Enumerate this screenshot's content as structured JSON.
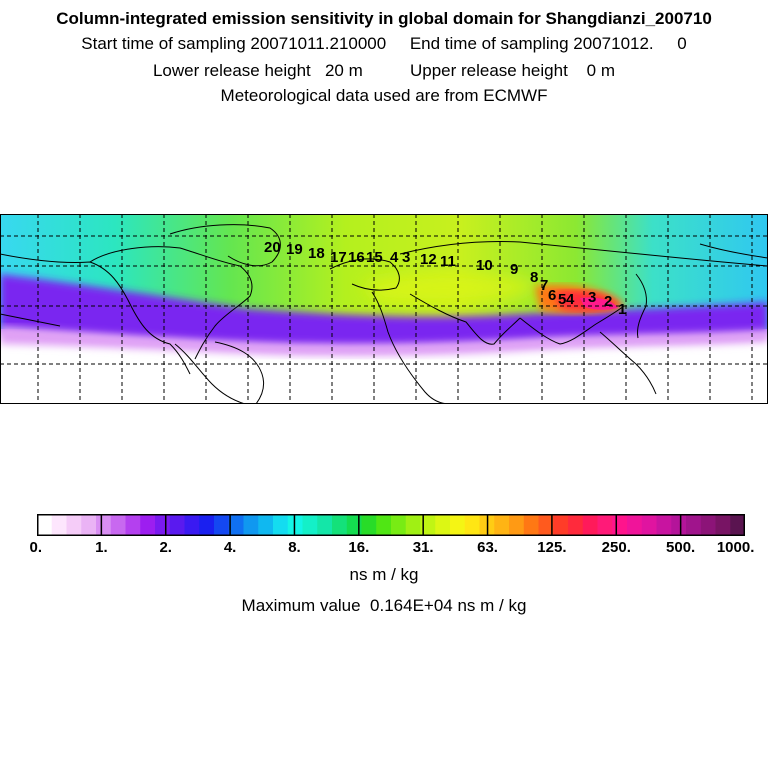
{
  "header": {
    "title": "Column-integrated emission sensitivity in global domain for Shangdianzi_200710",
    "line2": "Start time of sampling 20071011.210000     End time of sampling 20071012.     0",
    "line3": "Lower release height   20 m          Upper release height    0 m",
    "line4": "Meteorological data used are from ECMWF"
  },
  "map": {
    "trajectory_labels": [
      "20",
      "19",
      "18",
      "17",
      "16",
      "15",
      "4",
      "3",
      "12",
      "11",
      "10",
      "9",
      "8",
      "7",
      "6",
      "5",
      "4",
      "3",
      "2",
      "1"
    ],
    "colors": {
      "white": "#ffffff",
      "violet": "#c050f0",
      "blue": "#3c3cf0",
      "cyan": "#2ce6e6",
      "green": "#50e650",
      "yellowgreen": "#c8f01e",
      "yellow": "#ffe61e",
      "red": "#ff2a2a",
      "magenta": "#ff1a8c"
    }
  },
  "colorbar": {
    "ticks": [
      "0.",
      "1.",
      "2.",
      "4.",
      "8.",
      "16.",
      "31.",
      "63.",
      "125.",
      "250.",
      "500.",
      "1000."
    ],
    "colors": [
      "#ffffff",
      "#fde6fd",
      "#f5ccf8",
      "#eab3f5",
      "#d98ff3",
      "#c868f0",
      "#b440ef",
      "#9d1ef0",
      "#7a1af0",
      "#5a1aef",
      "#3a1af2",
      "#1a20f0",
      "#1448f2",
      "#1070f2",
      "#1098f0",
      "#10b8f0",
      "#14dcf0",
      "#14f5e6",
      "#14f0c8",
      "#14e6a8",
      "#14e17a",
      "#14dc50",
      "#28dc28",
      "#50e614",
      "#78ec14",
      "#a0f014",
      "#c0f514",
      "#dcf714",
      "#f5f514",
      "#ffe614",
      "#ffcc14",
      "#ffb414",
      "#ff9a14",
      "#ff7814",
      "#ff5a1e",
      "#ff3c28",
      "#ff2a3c",
      "#ff1a5a",
      "#ff1a78",
      "#ff148c",
      "#f0149a",
      "#e014a0",
      "#c814a0",
      "#b4149a",
      "#a0148c",
      "#8c1478",
      "#781464",
      "#5a1450"
    ],
    "units": "ns m / kg",
    "max_label": "Maximum value  0.164E+04 ns m / kg"
  }
}
